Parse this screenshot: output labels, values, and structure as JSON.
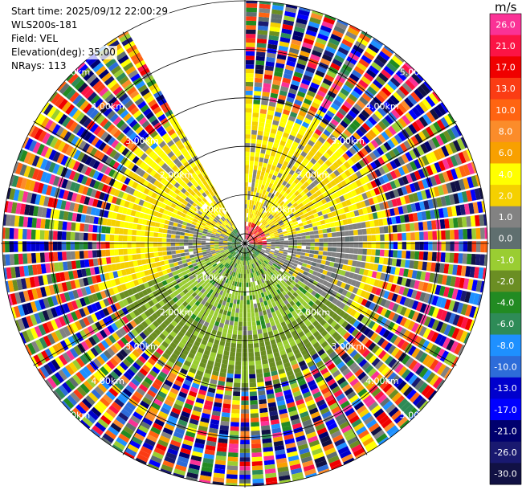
{
  "header": {
    "start_time": "Start time: 2025/09/12 22:00:29",
    "instrument": "WLS200s-181",
    "field": "Field: VEL",
    "elevation": "Elevation(deg): 35.00",
    "nrays": "NRays: 113"
  },
  "colorbar": {
    "unit": "m/s",
    "levels": [
      {
        "label": "26.0",
        "color": "#fa3296"
      },
      {
        "label": "21.0",
        "color": "#fc1445"
      },
      {
        "label": "17.0",
        "color": "#f00000"
      },
      {
        "label": "13.0",
        "color": "#fb3c14"
      },
      {
        "label": "10.0",
        "color": "#ff6411"
      },
      {
        "label": "8.0",
        "color": "#fb8c2a"
      },
      {
        "label": "6.0",
        "color": "#f8a000"
      },
      {
        "label": "4.0",
        "color": "#ffff00"
      },
      {
        "label": "2.0",
        "color": "#f5d000"
      },
      {
        "label": "1.0",
        "color": "#828282"
      },
      {
        "label": "0.0",
        "color": "#5f6f6f"
      },
      {
        "label": "-1.0",
        "color": "#9acd32"
      },
      {
        "label": "-2.0",
        "color": "#6b8e23"
      },
      {
        "label": "-4.0",
        "color": "#228b22"
      },
      {
        "label": "-6.0",
        "color": "#2e8b57"
      },
      {
        "label": "-8.0",
        "color": "#1e90ff"
      },
      {
        "label": "-10.0",
        "color": "#2d6cd9"
      },
      {
        "label": "-13.0",
        "color": "#0000cd"
      },
      {
        "label": "-17.0",
        "color": "#0000ff"
      },
      {
        "label": "-21.0",
        "color": "#00006e"
      },
      {
        "label": "-26.0",
        "color": "#191970"
      },
      {
        "label": "-30.0",
        "color": "#111144"
      }
    ]
  },
  "chart_data": {
    "type": "heatmap",
    "projection": "polar-ppi",
    "field": "VEL",
    "units": "m/s",
    "elevation_deg": 35.0,
    "nrays": 113,
    "max_range_km": 5.0,
    "missing_sector_deg": [
      330,
      360
    ],
    "range_rings": [
      {
        "range_km": 1.0,
        "label": "1.00km"
      },
      {
        "range_km": 2.0,
        "label": "2.00km"
      },
      {
        "range_km": 3.0,
        "label": "3.00km"
      },
      {
        "range_km": 4.0,
        "label": "4.00km"
      },
      {
        "range_km": 5.0,
        "label": "5.00km"
      }
    ],
    "regions": [
      {
        "azimuth_range_deg": [
          0,
          90
        ],
        "range_km": [
          0,
          0.5
        ],
        "dominant_velocity": "13.0 to 26.0"
      },
      {
        "azimuth_range_deg": [
          300,
          90
        ],
        "range_km": [
          0.5,
          2.8
        ],
        "dominant_velocity": "2.0 to 4.0"
      },
      {
        "azimuth_range_deg": [
          45,
          135
        ],
        "range_km": [
          0.6,
          2.6
        ],
        "dominant_velocity": "0.0 to 1.0"
      },
      {
        "azimuth_range_deg": [
          120,
          250
        ],
        "range_km": [
          0.5,
          3.0
        ],
        "dominant_velocity": "-2.0 to -1.0"
      },
      {
        "azimuth_range_deg": [
          150,
          230
        ],
        "range_km": [
          2.0,
          3.2
        ],
        "dominant_velocity": "-4.0 to -2.0"
      },
      {
        "azimuth_range_deg": [
          0,
          360
        ],
        "range_km": [
          3.0,
          5.0
        ],
        "dominant_velocity": "noise, all values"
      }
    ]
  }
}
